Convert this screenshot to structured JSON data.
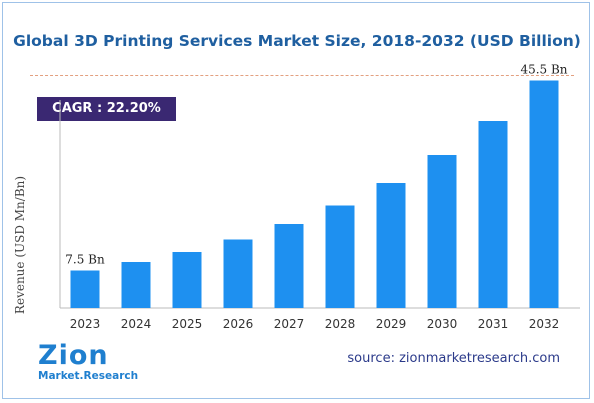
{
  "title": "Global 3D Printing Services Market Size, 2018-2032 (USD Billion)",
  "cagr_label": "CAGR : 22.20%",
  "source": "source: zionmarketresearch.com",
  "logo": {
    "main": "Zion",
    "sub": "Market.Research"
  },
  "colors": {
    "bar": "#1e90f0",
    "title": "#1f5fa0",
    "badge": "#3a2872",
    "axis": "#bbbbbb"
  },
  "chart_data": {
    "type": "bar",
    "title": "Global 3D Printing Services Market Size, 2018-2032 (USD Billion)",
    "xlabel": "",
    "ylabel": "Revenue (USD Mn/Bn)",
    "categories": [
      "2023",
      "2024",
      "2025",
      "2026",
      "2027",
      "2028",
      "2029",
      "2030",
      "2031",
      "2032"
    ],
    "values": [
      7.5,
      9.2,
      11.2,
      13.7,
      16.8,
      20.5,
      25.0,
      30.6,
      37.4,
      45.5
    ],
    "ylim": [
      0,
      50
    ],
    "data_labels": [
      {
        "index": 0,
        "text": "7.5 Bn"
      },
      {
        "index": 9,
        "text": "45.5 Bn"
      }
    ],
    "grid": false,
    "legend": "none"
  }
}
